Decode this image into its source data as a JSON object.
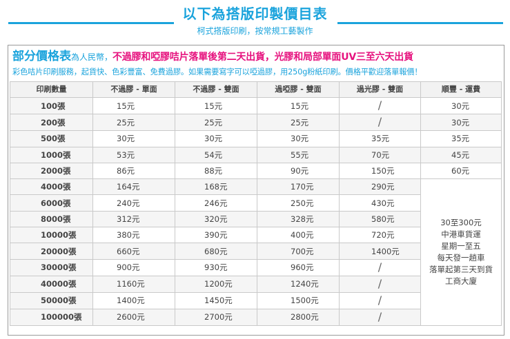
{
  "header": {
    "title": "以下為搭版印製價目表",
    "subtitle": "柯式搭版印刷，按常規工藝製作"
  },
  "section": {
    "title": "部分價格表",
    "currency": "為人民幣，",
    "notice": "不過膠和啞膠咭片落單後第二天出貨，光膠和局部單面UV三至六天出貨",
    "description": "彩色咭片印刷服務，起貨快、色彩豐富、免費過膠。如果需要寫字可以啞過膠，用250g粉紙印刷。價格平歡迎落單報價！"
  },
  "table": {
    "headers": [
      "印刷數量",
      "不過膠 - 單面",
      "不過膠 - 雙面",
      "過啞膠 - 雙面",
      "過光膠 - 雙面",
      "順豐 - 運費"
    ],
    "rows": [
      {
        "qty": "100張",
        "c1": "15元",
        "c2": "15元",
        "c3": "15元",
        "c4": "/",
        "c5": "30元"
      },
      {
        "qty": "200張",
        "c1": "25元",
        "c2": "25元",
        "c3": "25元",
        "c4": "/",
        "c5": "30元"
      },
      {
        "qty": "500張",
        "c1": "30元",
        "c2": "30元",
        "c3": "30元",
        "c4": "35元",
        "c5": "35元"
      },
      {
        "qty": "1000張",
        "c1": "53元",
        "c2": "54元",
        "c3": "55元",
        "c4": "70元",
        "c5": "45元"
      },
      {
        "qty": "2000張",
        "c1": "86元",
        "c2": "88元",
        "c3": "90元",
        "c4": "150元",
        "c5": "60元"
      },
      {
        "qty": "4000張",
        "c1": "164元",
        "c2": "168元",
        "c3": "170元",
        "c4": "290元"
      },
      {
        "qty": "6000張",
        "c1": "240元",
        "c2": "246元",
        "c3": "250元",
        "c4": "430元"
      },
      {
        "qty": "8000張",
        "c1": "312元",
        "c2": "320元",
        "c3": "328元",
        "c4": "580元"
      },
      {
        "qty": "10000張",
        "c1": "380元",
        "c2": "390元",
        "c3": "400元",
        "c4": "720元"
      },
      {
        "qty": "20000張",
        "c1": "660元",
        "c2": "680元",
        "c3": "700元",
        "c4": "1400元"
      },
      {
        "qty": "30000張",
        "c1": "900元",
        "c2": "930元",
        "c3": "960元",
        "c4": "/"
      },
      {
        "qty": "40000張",
        "c1": "1160元",
        "c2": "1200元",
        "c3": "1240元",
        "c4": "/"
      },
      {
        "qty": "50000張",
        "c1": "1400元",
        "c2": "1450元",
        "c3": "1500元",
        "c4": "/"
      },
      {
        "qty": "100000張",
        "c1": "2600元",
        "c2": "2700元",
        "c3": "2800元",
        "c4": "/"
      }
    ],
    "shipping_note": [
      "30至300元",
      "中港車貨運",
      "星期一至五",
      "每天發一趟車",
      "落單起第三天到貨",
      "工商大廈"
    ]
  },
  "colors": {
    "accent": "#1aa3dc",
    "highlight": "#e6127e"
  }
}
